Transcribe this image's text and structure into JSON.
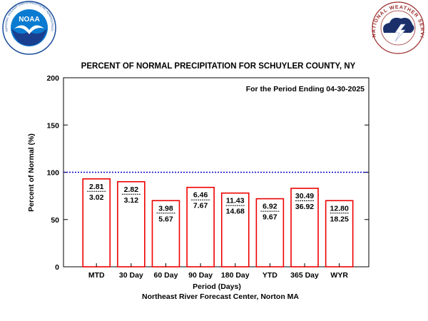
{
  "logos": {
    "noaa": {
      "icon": "noaa-logo-icon",
      "wordmark": "NOAA",
      "ring_text": "NATIONAL OCEANIC AND ATMOSPHERIC ADMINISTRATION • U.S. DEPARTMENT OF COMMERCE"
    },
    "nws": {
      "icon": "nws-logo-icon",
      "ring_text": "NATIONAL WEATHER SERVICE"
    }
  },
  "colors": {
    "bar_outline": "#ee0000",
    "normal_line": "#0000cc",
    "frame": "#000000"
  },
  "chart_data": {
    "type": "bar",
    "title": "PERCENT OF NORMAL PRECIPITATION FOR SCHUYLER COUNTY, NY",
    "subtitle": "For the Period Ending 04-30-2025",
    "xlabel": "Period (Days)",
    "ylabel": "Percent of Normal (%)",
    "credit": "Northeast River Forecast Center, Norton MA",
    "categories": [
      "MTD",
      "30 Day",
      "60 Day",
      "90 Day",
      "180 Day",
      "YTD",
      "365 Day",
      "WYR"
    ],
    "values": [
      93,
      90,
      70,
      84,
      78,
      72,
      83,
      70
    ],
    "observed": [
      "2.81",
      "2.82",
      "3.98",
      "6.46",
      "11.43",
      "6.92",
      "30.49",
      "12.80"
    ],
    "normal": [
      "3.02",
      "3.12",
      "5.67",
      "7.67",
      "14.68",
      "9.67",
      "36.92",
      "18.25"
    ],
    "ylim": [
      0,
      200
    ],
    "yticks": [
      0,
      50,
      100,
      150,
      200
    ],
    "reference_line": 100,
    "grid": false
  }
}
